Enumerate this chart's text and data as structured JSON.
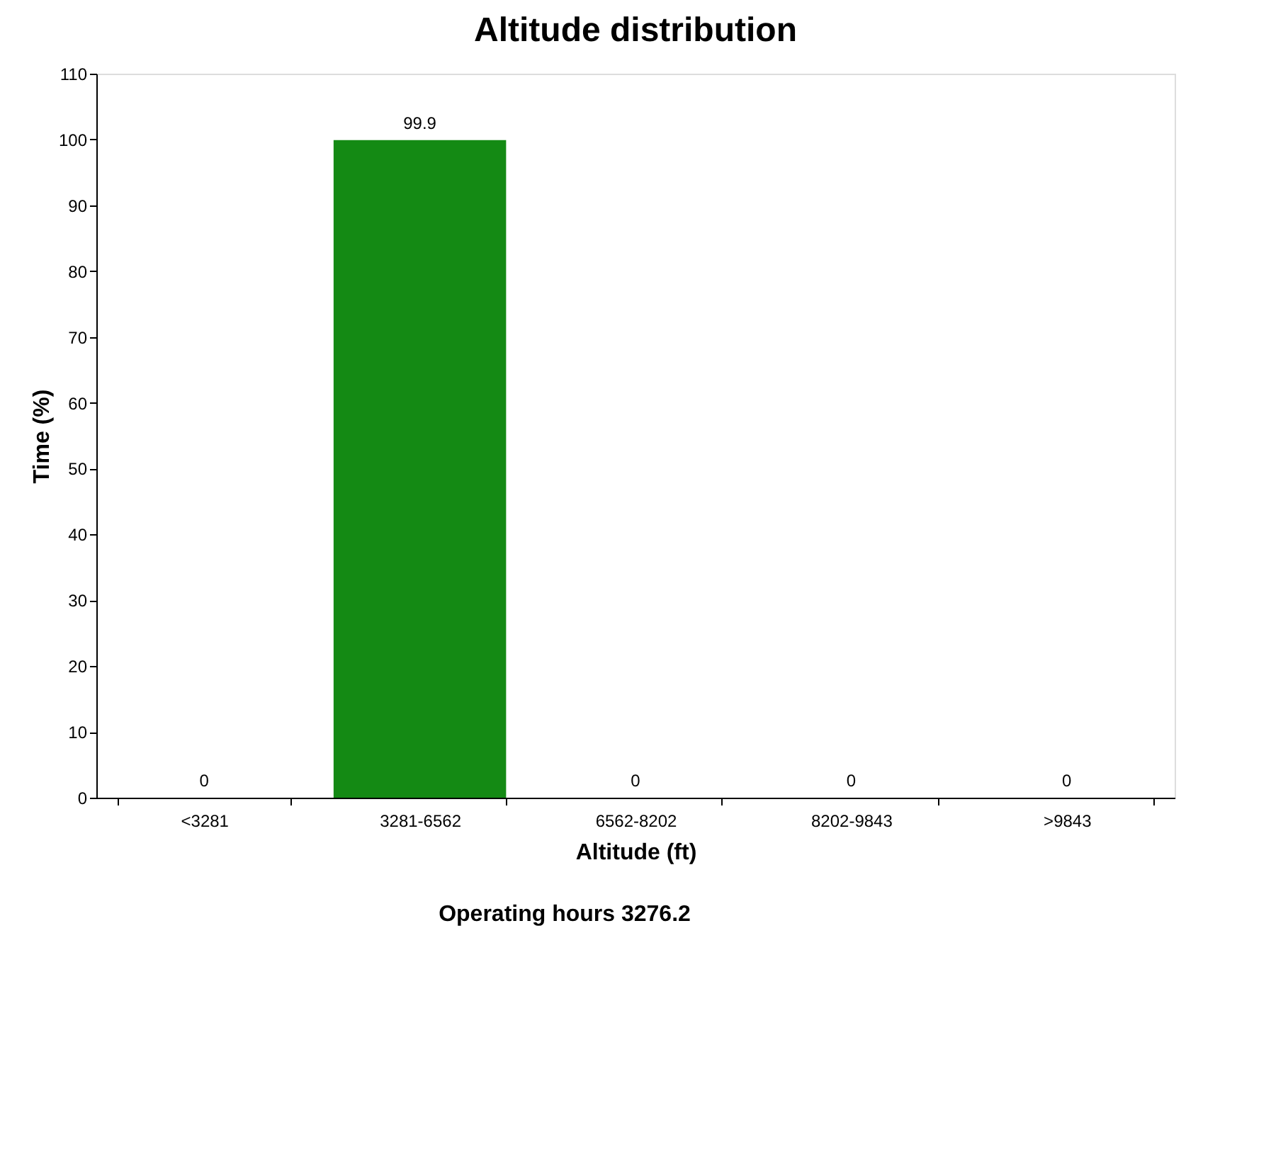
{
  "chart_data": {
    "type": "bar",
    "title": "Altitude distribution",
    "xlabel": "Altitude (ft)",
    "ylabel": "Time (%)",
    "categories": [
      "<3281",
      "3281-6562",
      "6562-8202",
      "8202-9843",
      ">9843"
    ],
    "values": [
      0,
      99.9,
      0,
      0,
      0
    ],
    "color": "#148a14",
    "ylim": [
      0,
      110
    ],
    "yticks": [
      0,
      10,
      20,
      30,
      40,
      50,
      60,
      70,
      80,
      90,
      100,
      110
    ],
    "data_labels": true,
    "grid": false,
    "annotations": [
      "Operating hours 3276.2"
    ]
  }
}
